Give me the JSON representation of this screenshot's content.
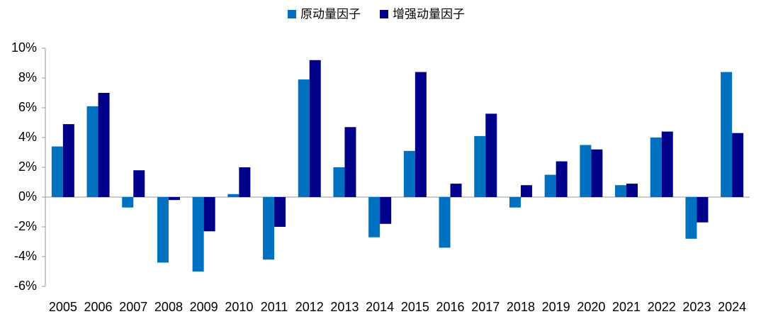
{
  "chart_data": {
    "type": "bar",
    "categories": [
      "2005",
      "2006",
      "2007",
      "2008",
      "2009",
      "2010",
      "2011",
      "2012",
      "2013",
      "2014",
      "2015",
      "2016",
      "2017",
      "2018",
      "2019",
      "2020",
      "2021",
      "2022",
      "2023",
      "2024"
    ],
    "series": [
      {
        "name": "原动量因子",
        "color": "#0070c0",
        "values": [
          3.4,
          6.1,
          -0.7,
          -4.4,
          -5.0,
          0.2,
          -4.2,
          7.9,
          2.0,
          -2.7,
          3.1,
          -3.4,
          4.1,
          -0.7,
          1.5,
          3.5,
          0.8,
          4.0,
          -2.8,
          8.4
        ]
      },
      {
        "name": "增强动量因子",
        "color": "#00008b",
        "values": [
          4.9,
          7.0,
          1.8,
          -0.2,
          -2.3,
          2.0,
          -2.0,
          9.2,
          4.7,
          -1.8,
          8.4,
          0.9,
          5.6,
          0.8,
          2.4,
          3.2,
          0.9,
          4.4,
          -1.7,
          4.3
        ]
      }
    ],
    "ylim": [
      -6,
      10
    ],
    "yticks": [
      {
        "value": -6,
        "label": "-6%"
      },
      {
        "value": -4,
        "label": "-4%"
      },
      {
        "value": -2,
        "label": "-2%"
      },
      {
        "value": 0,
        "label": "0%"
      },
      {
        "value": 2,
        "label": "2%"
      },
      {
        "value": 4,
        "label": "4%"
      },
      {
        "value": 6,
        "label": "6%"
      },
      {
        "value": 8,
        "label": "8%"
      },
      {
        "value": 10,
        "label": "10%"
      }
    ],
    "grid": false,
    "legend": "top"
  }
}
